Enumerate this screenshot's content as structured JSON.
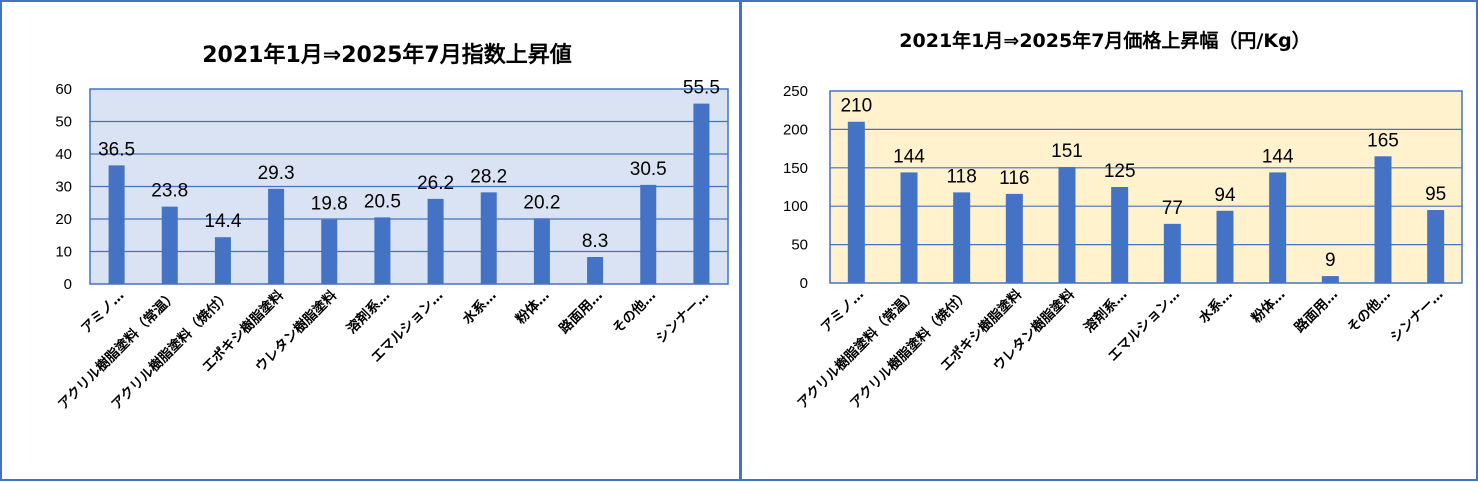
{
  "colors": {
    "bar": "#4472c4",
    "border": "#4472c4",
    "grid": "#4472c4"
  },
  "chart_data": [
    {
      "type": "bar",
      "title": "2021年1月⇒2025年7月指数上昇値",
      "categories": [
        "アミノ…",
        "アクリル樹脂塗料（常温）",
        "アクリル樹脂塗料（焼付）",
        "エポキシ樹脂塗料",
        "ウレタン樹脂塗料",
        "溶剤系…",
        "エマルション…",
        "水系…",
        "粉体…",
        "路面用…",
        "その他…",
        "シンナー…"
      ],
      "values": [
        36.5,
        23.8,
        14.4,
        29.3,
        19.8,
        20.5,
        26.2,
        28.2,
        20.2,
        8.3,
        30.5,
        55.5
      ],
      "data_labels": [
        "36.5",
        "23.8",
        "14.4",
        "29.3",
        "19.8",
        "20.5",
        "26.2",
        "28.2",
        "20.2",
        "8.3",
        "30.5",
        "55.5"
      ],
      "ylim": [
        0,
        60
      ],
      "yticks": [
        0,
        10,
        20,
        30,
        40,
        50,
        60
      ],
      "ytick_labels": [
        "0",
        "10",
        "20",
        "30",
        "40",
        "50",
        "60"
      ],
      "grid": true,
      "plot_bg": "#dae3f3",
      "xlabel": "",
      "ylabel": ""
    },
    {
      "type": "bar",
      "title": "2021年1月⇒2025年7月価格上昇幅（円/Kg）",
      "categories": [
        "アミノ…",
        "アクリル樹脂塗料（常温）",
        "アクリル樹脂塗料（焼付）",
        "エポキシ樹脂塗料",
        "ウレタン樹脂塗料",
        "溶剤系…",
        "エマルション…",
        "水系…",
        "粉体…",
        "路面用…",
        "その他…",
        "シンナー…"
      ],
      "values": [
        210,
        144,
        118,
        116,
        151,
        125,
        77,
        94,
        144,
        9,
        165,
        95
      ],
      "data_labels": [
        "210",
        "144",
        "118",
        "116",
        "151",
        "125",
        "77",
        "94",
        "144",
        "9",
        "165",
        "95"
      ],
      "ylim": [
        0,
        250
      ],
      "yticks": [
        0,
        50,
        100,
        150,
        200,
        250
      ],
      "ytick_labels": [
        "0",
        "50",
        "100",
        "150",
        "200",
        "250"
      ],
      "grid": true,
      "plot_bg": "#fff2cc",
      "xlabel": "",
      "ylabel": ""
    }
  ]
}
